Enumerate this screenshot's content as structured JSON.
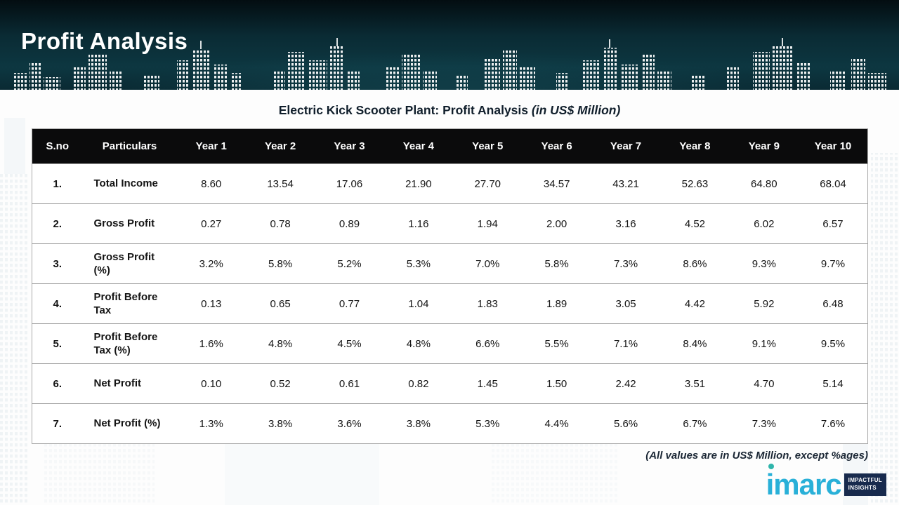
{
  "slide": {
    "title": "Profit Analysis",
    "table_title": "Electric Kick Scooter Plant: Profit Analysis",
    "table_title_note": "(in US$ Million)",
    "footnote": "(All values are in US$ Million, except %ages)"
  },
  "logo": {
    "brand": "imarc",
    "tagline_line1": "IMPACTFUL",
    "tagline_line2": "INSIGHTS"
  },
  "colors": {
    "header_background": "#0a2a33",
    "table_header_background": "#0b0b0c",
    "brand_cyan": "#29b0d8",
    "tagline_navy": "#182a4d"
  },
  "chart_data": {
    "type": "table",
    "title": "Electric Kick Scooter Plant: Profit Analysis (in US$ Million)",
    "headers": [
      "S.no",
      "Particulars",
      "Year 1",
      "Year 2",
      "Year 3",
      "Year 4",
      "Year 5",
      "Year 6",
      "Year 7",
      "Year 8",
      "Year 9",
      "Year 10"
    ],
    "rows": [
      {
        "sno": "1.",
        "particulars": "Total Income",
        "values": [
          "8.60",
          "13.54",
          "17.06",
          "21.90",
          "27.70",
          "34.57",
          "43.21",
          "52.63",
          "64.80",
          "68.04"
        ]
      },
      {
        "sno": "2.",
        "particulars": "Gross Profit",
        "values": [
          "0.27",
          "0.78",
          "0.89",
          "1.16",
          "1.94",
          "2.00",
          "3.16",
          "4.52",
          "6.02",
          "6.57"
        ]
      },
      {
        "sno": "3.",
        "particulars": "Gross Profit (%)",
        "values": [
          "3.2%",
          "5.8%",
          "5.2%",
          "5.3%",
          "7.0%",
          "5.8%",
          "7.3%",
          "8.6%",
          "9.3%",
          "9.7%"
        ]
      },
      {
        "sno": "4.",
        "particulars": "Profit Before Tax",
        "values": [
          "0.13",
          "0.65",
          "0.77",
          "1.04",
          "1.83",
          "1.89",
          "3.05",
          "4.42",
          "5.92",
          "6.48"
        ]
      },
      {
        "sno": "5.",
        "particulars": "Profit Before Tax (%)",
        "values": [
          "1.6%",
          "4.8%",
          "4.5%",
          "4.8%",
          "6.6%",
          "5.5%",
          "7.1%",
          "8.4%",
          "9.1%",
          "9.5%"
        ]
      },
      {
        "sno": "6.",
        "particulars": "Net Profit",
        "values": [
          "0.10",
          "0.52",
          "0.61",
          "0.82",
          "1.45",
          "1.50",
          "2.42",
          "3.51",
          "4.70",
          "5.14"
        ]
      },
      {
        "sno": "7.",
        "particulars": "Net Profit (%)",
        "values": [
          "1.3%",
          "3.8%",
          "3.6%",
          "3.8%",
          "5.3%",
          "4.4%",
          "5.6%",
          "6.7%",
          "7.3%",
          "7.6%"
        ]
      }
    ]
  }
}
